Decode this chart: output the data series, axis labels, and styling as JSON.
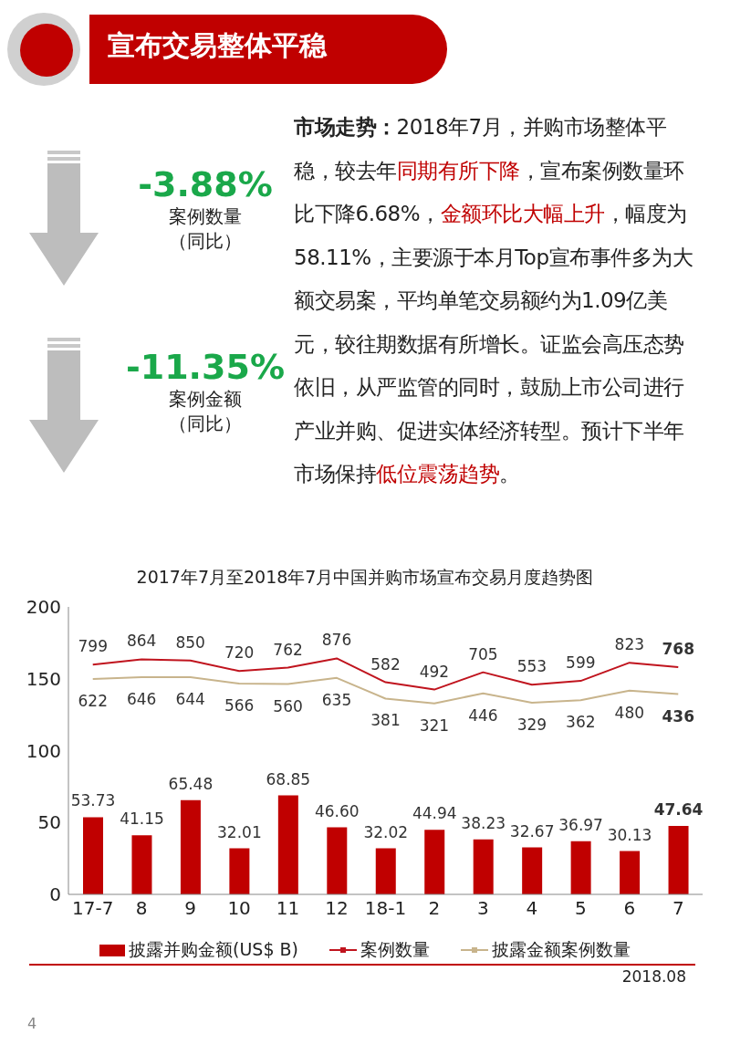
{
  "chart_data": {
    "type": "bar",
    "title": "2017年7月至2018年7月中国并购市场宣布交易月度趋势图",
    "categories": [
      "17-7",
      "8",
      "9",
      "10",
      "11",
      "12",
      "18-1",
      "2",
      "3",
      "4",
      "5",
      "6",
      "7"
    ],
    "series": [
      {
        "name": "披露并购金额(US$ B)",
        "color": "#c00000",
        "values": [
          53.73,
          41.15,
          65.48,
          32.01,
          68.85,
          46.6,
          32.02,
          44.94,
          38.23,
          32.67,
          36.97,
          30.13,
          47.64
        ],
        "value_labels": [
          "53.73",
          "41.15",
          "65.48",
          "32.01",
          "68.85",
          "46.60",
          "32.02",
          "44.94",
          "38.23",
          "32.67",
          "36.97",
          "30.13",
          "47.64"
        ]
      },
      {
        "name": "案例数量",
        "type": "line",
        "axis": "y2",
        "color": "#c0141e",
        "values": [
          799,
          864,
          850,
          720,
          762,
          876,
          582,
          492,
          705,
          553,
          599,
          823,
          768
        ],
        "value_labels": [
          "799",
          "864",
          "850",
          "720",
          "762",
          "876",
          "582",
          "492",
          "705",
          "553",
          "599",
          "823",
          "768"
        ]
      },
      {
        "name": "披露金额案例数量",
        "type": "line",
        "axis": "y2",
        "color": "#c8b48c",
        "values": [
          622,
          646,
          644,
          566,
          560,
          635,
          381,
          321,
          446,
          329,
          362,
          480,
          436
        ],
        "value_labels": [
          "622",
          "646",
          "644",
          "566",
          "560",
          "635",
          "381",
          "321",
          "446",
          "329",
          "362",
          "480",
          "436"
        ]
      }
    ],
    "ylim": [
      0,
      200
    ],
    "yticks": [
      0,
      50,
      100,
      150,
      200
    ],
    "y2lim": [
      -2030,
      1510
    ],
    "grid": false,
    "legend": "bottom",
    "marker": "none",
    "annotations": [
      "宣布交易整体平稳",
      "-3.88%",
      "案例数量",
      "（同比）",
      "-11.35%",
      "案例金额",
      "（同比）",
      "市场走势：",
      "2018年7月，并购市场整体平稳，较去年",
      "同期有所下降",
      "，宣布案例数量环比下降6.68%，",
      "金额环比大幅上升",
      "，幅度为58.11%，主要源于本月Top宣布事件多为大额交易案，平均单笔交易额约为1.09亿美元，较往期数据有所增长。证监会高压态势依旧，从严监管的同时，鼓励上市公司进行产业并购、促进实体经济转型。预计下半年市场保持",
      "低位震荡趋势",
      "。",
      "2018.08",
      "4"
    ]
  }
}
